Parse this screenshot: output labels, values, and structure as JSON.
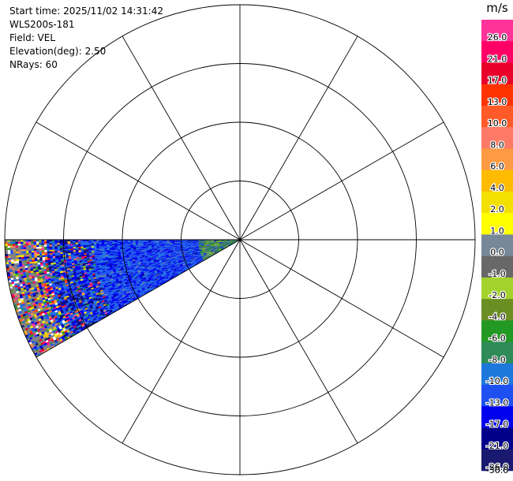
{
  "info": {
    "start_time": "Start time: 2025/11/02 14:31:42",
    "instrument": "WLS200s-181",
    "field": "Field: VEL",
    "elevation": "Elevation(deg): 2.50",
    "nrays": "NRays: 60"
  },
  "colorbar": {
    "unit": "m/s",
    "bins": [
      {
        "color": "#ff3399",
        "label": "26.0"
      },
      {
        "color": "#ff0066",
        "label": "21.0"
      },
      {
        "color": "#e8002a",
        "label": "17.0"
      },
      {
        "color": "#ff3300",
        "label": "13.0"
      },
      {
        "color": "#ff5a28",
        "label": "10.0"
      },
      {
        "color": "#ff7a66",
        "label": "8.0"
      },
      {
        "color": "#ff9a44",
        "label": "6.0"
      },
      {
        "color": "#ffbb00",
        "label": "4.0"
      },
      {
        "color": "#f4e000",
        "label": "2.0"
      },
      {
        "color": "#ffff00",
        "label": "1.0"
      },
      {
        "color": "#778899",
        "label": "0.0"
      },
      {
        "color": "#686868",
        "label": "-1.0"
      },
      {
        "color": "#a4d22c",
        "label": "-2.0"
      },
      {
        "color": "#6b8e23",
        "label": "-4.0"
      },
      {
        "color": "#229922",
        "label": "-6.0"
      },
      {
        "color": "#2e8b57",
        "label": "-8.0"
      },
      {
        "color": "#1e78dc",
        "label": "-10.0"
      },
      {
        "color": "#1e4ff0",
        "label": "-13.0"
      },
      {
        "color": "#0000ee",
        "label": "-17.0"
      },
      {
        "color": "#00008b",
        "label": "-21.0"
      },
      {
        "color": "#191970",
        "label": "-26.0"
      }
    ],
    "bottom_label": "-30.0"
  },
  "chart_data": {
    "type": "polar-ppi",
    "field": "VEL",
    "unit": "m/s",
    "range_rings": 4,
    "radial_lines_deg": [
      0,
      30,
      60,
      90,
      120,
      150,
      180,
      210,
      240,
      270,
      300,
      330
    ],
    "sector_azimuth_deg": [
      240,
      270
    ],
    "color_levels": [
      26.0,
      21.0,
      17.0,
      13.0,
      10.0,
      8.0,
      6.0,
      4.0,
      2.0,
      1.0,
      0.0,
      -1.0,
      -2.0,
      -4.0,
      -6.0,
      -8.0,
      -10.0,
      -13.0,
      -17.0,
      -21.0,
      -26.0,
      -30.0
    ],
    "nrays": 60
  }
}
